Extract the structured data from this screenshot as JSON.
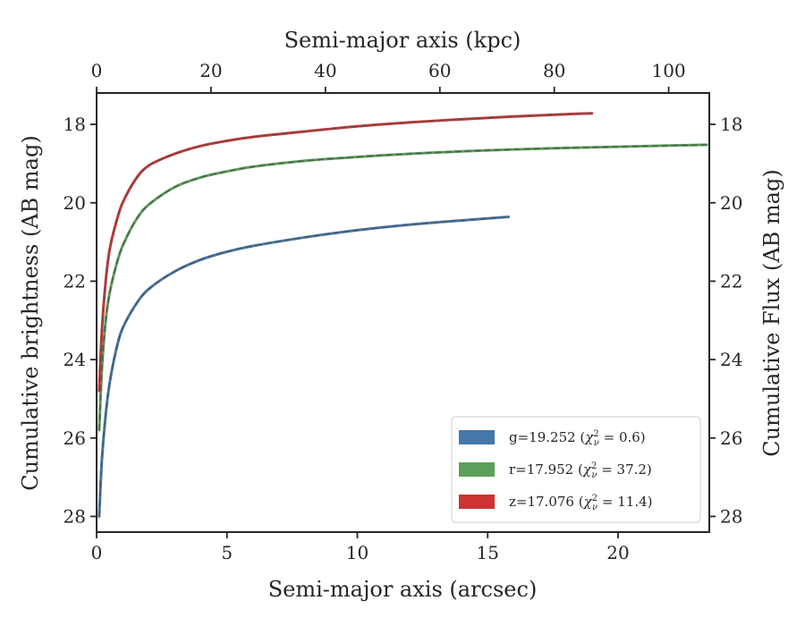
{
  "chart_data": {
    "type": "line",
    "xlabel": "Semi-major axis (arcsec)",
    "ylabel": "Cumulative brightness (AB mag)",
    "x2label": "Semi-major axis (kpc)",
    "y2label": "Cumulative Flux (AB mag)",
    "xlim": [
      0,
      23.5
    ],
    "ylim": [
      28.4,
      17.2
    ],
    "x2lim": [
      0,
      107.1
    ],
    "y_inverted": true,
    "xticks": [
      0,
      5,
      10,
      15,
      20
    ],
    "yticks": [
      18,
      20,
      22,
      24,
      26,
      28
    ],
    "x2ticks": [
      0,
      20,
      40,
      60,
      80,
      100
    ],
    "legend_position": "lower-right",
    "grid": false,
    "series": [
      {
        "name": "g=19.252",
        "chi": "0.6",
        "color": "#4477aa",
        "x": [
          0.1,
          0.2,
          0.35,
          0.5,
          0.75,
          1.0,
          1.5,
          2.0,
          3.0,
          4.0,
          5.0,
          6.0,
          8.0,
          10.0,
          12.0,
          14.0,
          15.8
        ],
        "y": [
          28.0,
          26.6,
          25.4,
          24.6,
          23.75,
          23.2,
          22.6,
          22.2,
          21.75,
          21.45,
          21.25,
          21.1,
          20.88,
          20.7,
          20.56,
          20.45,
          20.36
        ]
      },
      {
        "name": "r=17.952",
        "chi": "37.2",
        "color": "#5aa05a",
        "x": [
          0.1,
          0.2,
          0.35,
          0.5,
          0.75,
          1.0,
          1.5,
          2.0,
          3.0,
          4.0,
          5.0,
          6.0,
          8.0,
          10.0,
          12.0,
          14.0,
          16.0,
          18.0,
          20.0,
          22.0,
          23.4
        ],
        "y": [
          25.8,
          24.3,
          23.0,
          22.3,
          21.6,
          21.1,
          20.45,
          20.05,
          19.6,
          19.35,
          19.2,
          19.08,
          18.93,
          18.83,
          18.75,
          18.69,
          18.64,
          18.6,
          18.57,
          18.54,
          18.52
        ]
      },
      {
        "name": "z=17.076",
        "chi": "11.4",
        "color": "#cc3333",
        "x": [
          0.1,
          0.2,
          0.35,
          0.5,
          0.75,
          1.0,
          1.5,
          2.0,
          3.0,
          4.0,
          5.0,
          6.0,
          8.0,
          10.0,
          12.0,
          14.0,
          16.0,
          18.0,
          19.0
        ],
        "y": [
          24.8,
          23.3,
          22.0,
          21.2,
          20.5,
          20.0,
          19.4,
          19.05,
          18.75,
          18.55,
          18.42,
          18.32,
          18.18,
          18.05,
          17.95,
          17.87,
          17.8,
          17.74,
          17.72
        ]
      }
    ]
  }
}
